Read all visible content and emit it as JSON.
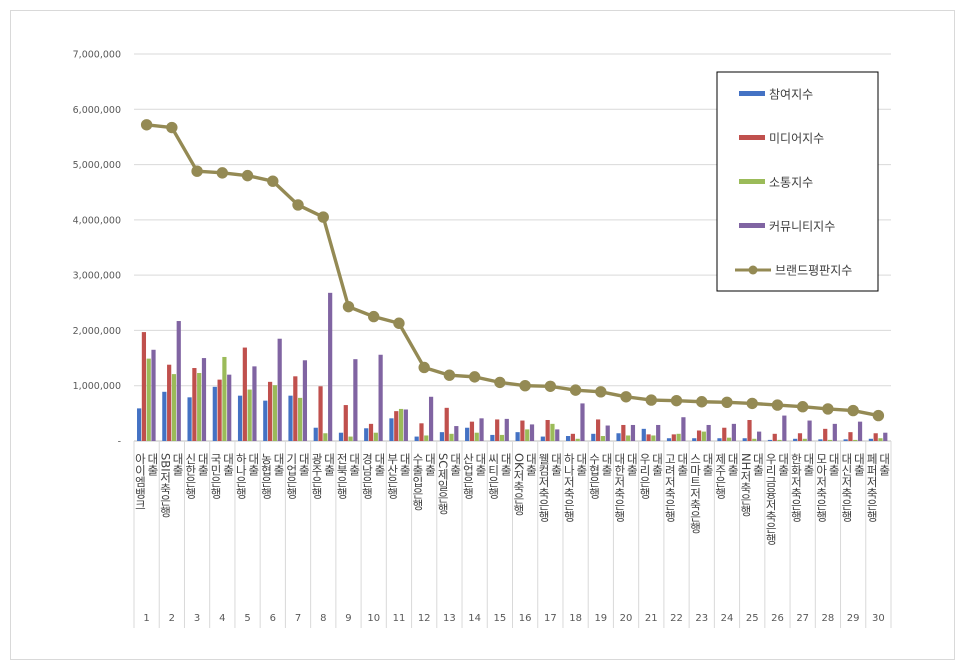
{
  "chart_data": {
    "type": "bar",
    "title": "",
    "xlabel": "",
    "ylabel": "",
    "ylim": [
      0,
      7000000
    ],
    "yticks": [
      "-",
      "1,000,000",
      "2,000,000",
      "3,000,000",
      "4,000,000",
      "5,000,000",
      "6,000,000",
      "7,000,000"
    ],
    "grid": true,
    "legend_position": "top-right",
    "categories": [
      "아이엠뱅크 대출",
      "SBI저축은행 대출",
      "신한은행 대출",
      "국민은행 대출",
      "하나은행 대출",
      "농협은행 대출",
      "기업은행 대출",
      "광주은행 대출",
      "전북은행 대출",
      "경남은행 대출",
      "부산은행 대출",
      "수출입은행 대출",
      "SC제일은행 대출",
      "산업은행 대출",
      "씨티은행 대출",
      "OK저축은행 대출",
      "웰컴저축은행 대출",
      "하나저축은행 대출",
      "수협은행 대출",
      "대한저축은행 대출",
      "우리은행 대출",
      "고려저축은행 대출",
      "스마트저축은행 대출",
      "제주은행 대출",
      "NH저축은행 대출",
      "우리금융저축은행 대출",
      "한화저축은행 대출",
      "모아저축은행 대출",
      "대신저축은행 대출",
      "페퍼저축은행 대출"
    ],
    "ranks": [
      "1",
      "2",
      "3",
      "4",
      "5",
      "6",
      "7",
      "8",
      "9",
      "10",
      "11",
      "12",
      "13",
      "14",
      "15",
      "16",
      "17",
      "18",
      "19",
      "20",
      "21",
      "22",
      "23",
      "24",
      "25",
      "26",
      "27",
      "28",
      "29",
      "30"
    ],
    "series": [
      {
        "name": "참여지수",
        "kind": "bar",
        "color": "#4472c4",
        "values": [
          590000,
          890000,
          790000,
          980000,
          820000,
          730000,
          820000,
          240000,
          150000,
          230000,
          410000,
          80000,
          160000,
          240000,
          110000,
          160000,
          80000,
          90000,
          130000,
          140000,
          220000,
          50000,
          50000,
          50000,
          50000,
          20000,
          40000,
          30000,
          30000,
          40000
        ]
      },
      {
        "name": "미디어지수",
        "kind": "bar",
        "color": "#c0504d",
        "values": [
          1970000,
          1380000,
          1320000,
          1110000,
          1690000,
          1070000,
          1170000,
          990000,
          650000,
          310000,
          540000,
          320000,
          600000,
          350000,
          390000,
          370000,
          380000,
          130000,
          390000,
          290000,
          120000,
          120000,
          190000,
          240000,
          380000,
          130000,
          140000,
          220000,
          160000,
          140000
        ]
      },
      {
        "name": "소통지수",
        "kind": "bar",
        "color": "#9bbb59",
        "values": [
          1490000,
          1210000,
          1230000,
          1520000,
          930000,
          1010000,
          780000,
          140000,
          80000,
          150000,
          580000,
          100000,
          130000,
          150000,
          110000,
          210000,
          310000,
          40000,
          90000,
          100000,
          100000,
          130000,
          170000,
          60000,
          40000,
          20000,
          40000,
          20000,
          20000,
          50000
        ]
      },
      {
        "name": "커뮤니티지수",
        "kind": "bar",
        "color": "#8064a2",
        "values": [
          1650000,
          2170000,
          1500000,
          1200000,
          1350000,
          1850000,
          1460000,
          2680000,
          1480000,
          1560000,
          570000,
          800000,
          270000,
          410000,
          400000,
          300000,
          210000,
          680000,
          280000,
          290000,
          290000,
          430000,
          290000,
          310000,
          170000,
          460000,
          370000,
          310000,
          350000,
          150000
        ]
      },
      {
        "name": "브랜드평판지수",
        "kind": "line",
        "color": "#948a54",
        "values": [
          5720000,
          5670000,
          4880000,
          4850000,
          4800000,
          4700000,
          4270000,
          4050000,
          2430000,
          2250000,
          2130000,
          1330000,
          1190000,
          1160000,
          1060000,
          1000000,
          990000,
          920000,
          890000,
          800000,
          740000,
          730000,
          710000,
          700000,
          680000,
          650000,
          620000,
          580000,
          550000,
          460000
        ]
      }
    ]
  }
}
